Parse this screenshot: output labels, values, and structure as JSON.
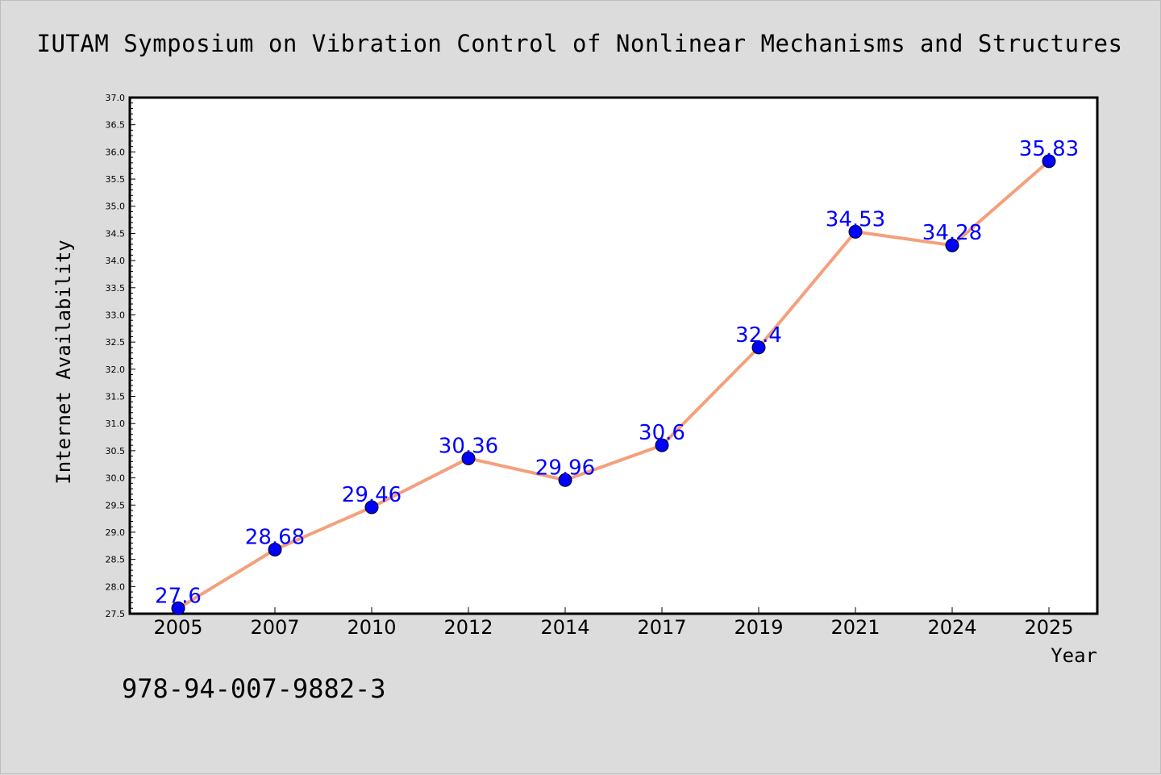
{
  "colors": {
    "background": "#dcdcdc",
    "plot_background": "#ffffff",
    "line": "#f4a07c",
    "marker": "#0000ff",
    "data_label": "#0000ff"
  },
  "footer_text": "978-94-007-9882-3",
  "chart_data": {
    "type": "line",
    "title": "IUTAM Symposium on Vibration Control of Nonlinear Mechanisms and Structures",
    "xlabel": "Year",
    "ylabel": "Internet Availability",
    "categories": [
      "2005",
      "2007",
      "2010",
      "2012",
      "2014",
      "2017",
      "2019",
      "2021",
      "2024",
      "2025"
    ],
    "series": [
      {
        "values": [
          27.6,
          28.68,
          29.46,
          30.36,
          29.96,
          30.6,
          32.4,
          34.53,
          34.28,
          35.83
        ],
        "labels": [
          "27.6",
          "28.68",
          "29.46",
          "30.36",
          "29.96",
          "30.6",
          "32.4",
          "34.53",
          "34.28",
          "35.83"
        ]
      }
    ],
    "ylim": [
      27.5,
      37.0
    ],
    "yticks": [
      "27.5",
      "28.0",
      "28.5",
      "29.0",
      "29.5",
      "30.0",
      "30.5",
      "31.0",
      "31.5",
      "32.0",
      "32.5",
      "33.0",
      "33.5",
      "34.0",
      "34.5",
      "35.0",
      "35.5",
      "36.0",
      "36.5",
      "37.0"
    ],
    "grid": false,
    "markers": "circle",
    "legend": "none"
  }
}
